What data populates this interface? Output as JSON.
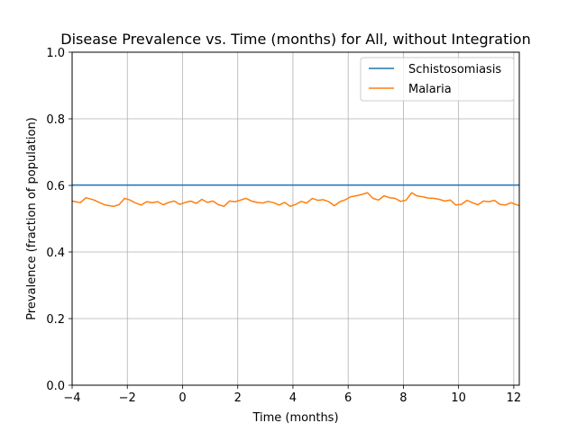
{
  "chart_data": {
    "type": "line",
    "title": "Disease Prevalence vs. Time (months) for All, without Integration",
    "xlabel": "Time (months)",
    "ylabel": "Prevalence (fraction of population)",
    "xlim": [
      -4,
      12.2
    ],
    "ylim": [
      0,
      1
    ],
    "xticks": [
      -4,
      -2,
      0,
      2,
      4,
      6,
      8,
      10,
      12
    ],
    "xtick_labels": [
      "−4",
      "−2",
      "0",
      "2",
      "4",
      "6",
      "8",
      "10",
      "12"
    ],
    "yticks": [
      0,
      0.2,
      0.4,
      0.6,
      0.8,
      1.0
    ],
    "ytick_labels": [
      "0.0",
      "0.2",
      "0.4",
      "0.6",
      "0.8",
      "1.0"
    ],
    "grid": true,
    "legend_position": "top-right",
    "series": [
      {
        "name": "Schistosomiasis",
        "color": "#1f77b4",
        "x": [
          -4,
          12.2
        ],
        "y": [
          0.601,
          0.601
        ]
      },
      {
        "name": "Malaria",
        "color": "#ff7f0e",
        "x": [
          -4,
          -3.7,
          -3.5,
          -3.2,
          -3,
          -2.8,
          -2.5,
          -2.3,
          -2.1,
          -1.9,
          -1.7,
          -1.5,
          -1.3,
          -1.1,
          -0.9,
          -0.7,
          -0.5,
          -0.3,
          -0.1,
          0.1,
          0.3,
          0.5,
          0.7,
          0.9,
          1.1,
          1.3,
          1.5,
          1.7,
          1.9,
          2.1,
          2.3,
          2.5,
          2.7,
          2.9,
          3.1,
          3.3,
          3.5,
          3.7,
          3.9,
          4.1,
          4.3,
          4.5,
          4.7,
          4.9,
          5.1,
          5.3,
          5.5,
          5.7,
          5.9,
          6.1,
          6.3,
          6.5,
          6.7,
          6.9,
          7.1,
          7.3,
          7.5,
          7.7,
          7.9,
          8.1,
          8.3,
          8.5,
          8.7,
          8.9,
          9.1,
          9.3,
          9.5,
          9.7,
          9.9,
          10.1,
          10.3,
          10.5,
          10.7,
          10.9,
          11.1,
          11.3,
          11.5,
          11.7,
          11.9,
          12.2
        ],
        "y": [
          0.553,
          0.548,
          0.563,
          0.556,
          0.548,
          0.541,
          0.537,
          0.542,
          0.561,
          0.556,
          0.547,
          0.541,
          0.551,
          0.548,
          0.551,
          0.542,
          0.549,
          0.553,
          0.543,
          0.549,
          0.553,
          0.546,
          0.558,
          0.549,
          0.553,
          0.542,
          0.537,
          0.553,
          0.551,
          0.556,
          0.561,
          0.553,
          0.549,
          0.547,
          0.552,
          0.548,
          0.541,
          0.549,
          0.537,
          0.543,
          0.552,
          0.547,
          0.561,
          0.555,
          0.557,
          0.551,
          0.539,
          0.551,
          0.557,
          0.566,
          0.569,
          0.573,
          0.578,
          0.561,
          0.556,
          0.569,
          0.563,
          0.561,
          0.552,
          0.556,
          0.578,
          0.568,
          0.566,
          0.562,
          0.561,
          0.558,
          0.553,
          0.556,
          0.541,
          0.543,
          0.555,
          0.548,
          0.542,
          0.553,
          0.551,
          0.555,
          0.543,
          0.541,
          0.548,
          0.539
        ]
      }
    ]
  }
}
